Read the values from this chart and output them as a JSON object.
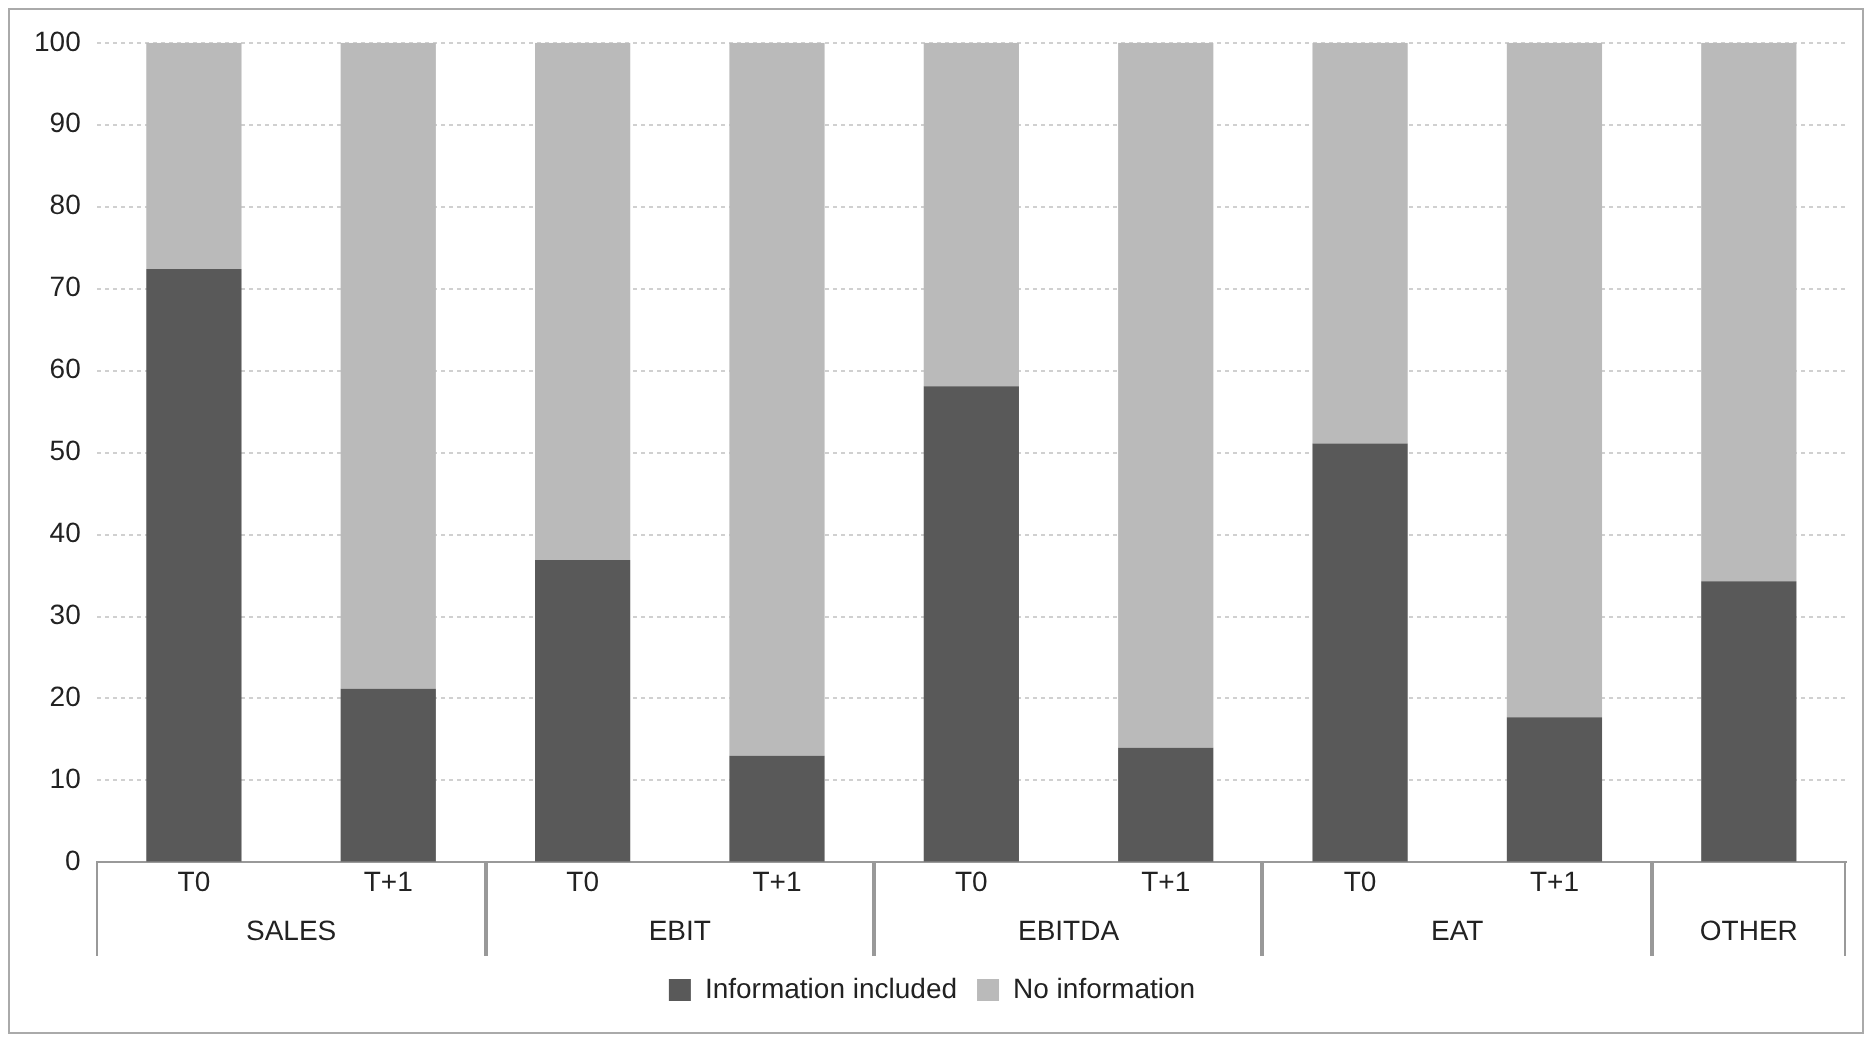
{
  "chart_data": {
    "type": "bar",
    "stacked": true,
    "categories": [
      "T0",
      "T+1",
      "T0",
      "T+1",
      "T0",
      "T+1",
      "T0",
      "T+1",
      null
    ],
    "series": [
      {
        "name": "Information included",
        "color": "#595959",
        "values": [
          72.4,
          21.2,
          36.9,
          13.0,
          58.1,
          14.0,
          51.1,
          17.7,
          34.3
        ]
      },
      {
        "name": "No information",
        "color": "#bababa",
        "values": [
          27.6,
          78.8,
          63.1,
          87.0,
          41.9,
          86.0,
          48.9,
          82.3,
          65.7
        ]
      }
    ],
    "annotations": [
      "SALES",
      "EBIT",
      "EBITDA",
      "EAT",
      "OTHER"
    ],
    "ylim": [
      0,
      100
    ],
    "yticks": [
      0,
      10,
      20,
      30,
      40,
      50,
      60,
      70,
      80,
      90,
      100
    ],
    "grid": "y",
    "legend": "bottom"
  }
}
